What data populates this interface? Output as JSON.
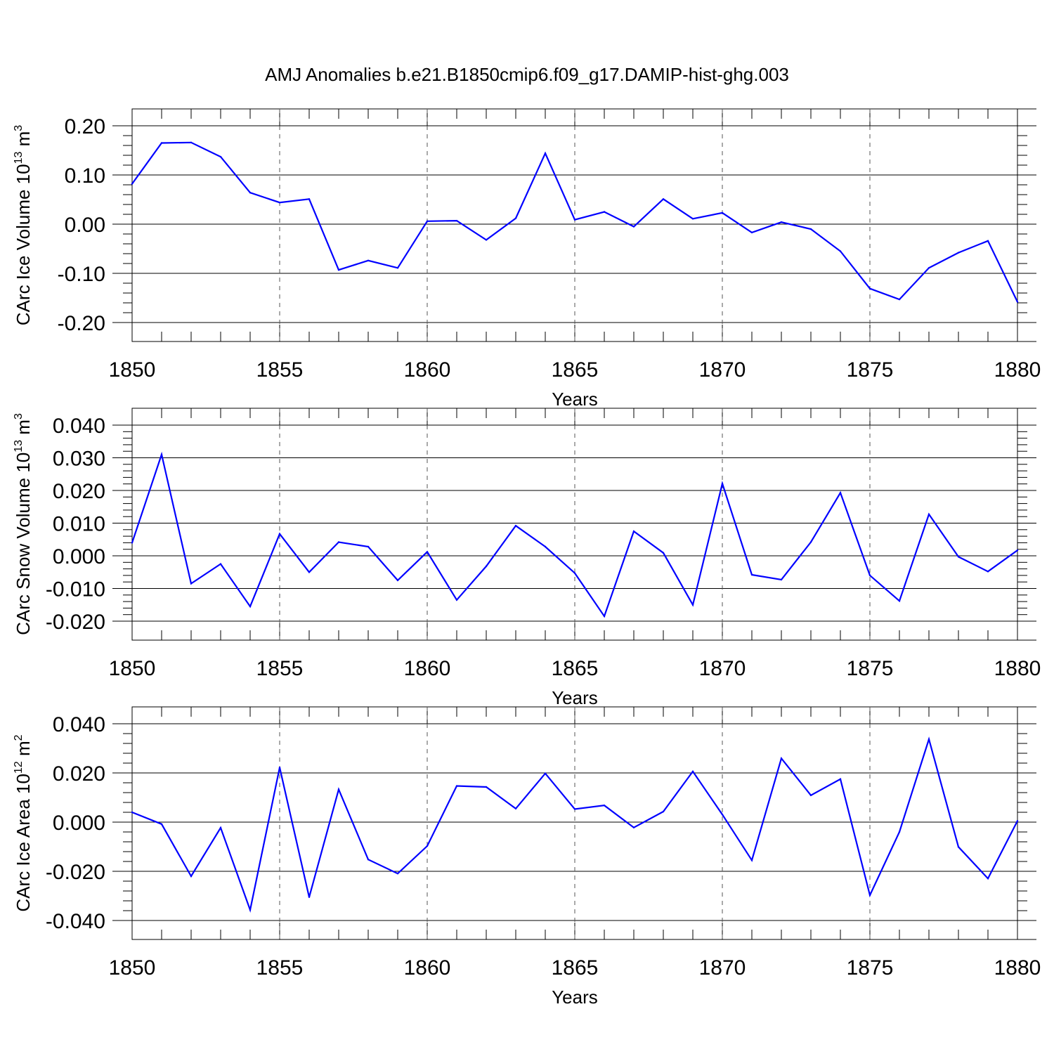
{
  "title": "AMJ Anomalies b.e21.B1850cmip6.f09_g17.DAMIP-hist-ghg.003",
  "line_color": "#0000ff",
  "chart_data": [
    {
      "type": "line",
      "ylabel": {
        "main": "CArc Ice Volume 10",
        "exp": "13",
        "unit": " m",
        "unit_exp": "3"
      },
      "xlabel": "Years",
      "xlim": [
        1850,
        1880
      ],
      "ylim": [
        -0.2,
        0.2
      ],
      "xticks": [
        "1850",
        "1855",
        "1860",
        "1865",
        "1870",
        "1875",
        "1880"
      ],
      "yticks": [
        "-0.20",
        "-0.10",
        "0.00",
        "0.10",
        "0.20"
      ],
      "x": [
        1850,
        1851,
        1852,
        1853,
        1854,
        1855,
        1856,
        1857,
        1858,
        1859,
        1860,
        1861,
        1862,
        1863,
        1864,
        1865,
        1866,
        1867,
        1868,
        1869,
        1870,
        1871,
        1872,
        1873,
        1874,
        1875,
        1876,
        1877,
        1878,
        1879,
        1880
      ],
      "values": [
        0.082,
        0.165,
        0.166,
        0.137,
        0.064,
        0.044,
        0.051,
        -0.093,
        -0.074,
        -0.089,
        0.006,
        0.007,
        -0.032,
        0.012,
        0.144,
        0.009,
        0.025,
        -0.005,
        0.051,
        0.011,
        0.023,
        -0.017,
        0.004,
        -0.01,
        -0.055,
        -0.131,
        -0.153,
        -0.089,
        -0.058,
        -0.034,
        -0.158
      ]
    },
    {
      "type": "line",
      "ylabel": {
        "main": "CArc Snow Volume 10",
        "exp": "13",
        "unit": " m",
        "unit_exp": "3"
      },
      "xlabel": "Years",
      "xlim": [
        1850,
        1880
      ],
      "ylim": [
        -0.02,
        0.04
      ],
      "xticks": [
        "1850",
        "1855",
        "1860",
        "1865",
        "1870",
        "1875",
        "1880"
      ],
      "yticks": [
        "-0.020",
        "-0.010",
        "0.000",
        "0.010",
        "0.020",
        "0.030",
        "0.040"
      ],
      "x": [
        1850,
        1851,
        1852,
        1853,
        1854,
        1855,
        1856,
        1857,
        1858,
        1859,
        1860,
        1861,
        1862,
        1863,
        1864,
        1865,
        1866,
        1867,
        1868,
        1869,
        1870,
        1871,
        1872,
        1873,
        1874,
        1875,
        1876,
        1877,
        1878,
        1879,
        1880
      ],
      "values": [
        0.004,
        0.031,
        -0.0085,
        -0.0025,
        -0.0155,
        0.0067,
        -0.005,
        0.0042,
        0.0028,
        -0.0075,
        0.0012,
        -0.0135,
        -0.0032,
        0.0092,
        0.0028,
        -0.0053,
        -0.0185,
        0.0075,
        0.0009,
        -0.015,
        0.0221,
        -0.0058,
        -0.0073,
        0.0042,
        0.0193,
        -0.006,
        -0.0138,
        0.0127,
        -0.0003,
        -0.0048,
        0.0017
      ]
    },
    {
      "type": "line",
      "ylabel": {
        "main": "CArc Ice Area 10",
        "exp": "12",
        "unit": " m",
        "unit_exp": "2"
      },
      "xlabel": "Years",
      "xlim": [
        1850,
        1880
      ],
      "ylim": [
        -0.04,
        0.04
      ],
      "xticks": [
        "1850",
        "1855",
        "1860",
        "1865",
        "1870",
        "1875",
        "1880"
      ],
      "yticks": [
        "-0.040",
        "-0.020",
        "0.000",
        "0.020",
        "0.040"
      ],
      "x": [
        1850,
        1851,
        1852,
        1853,
        1854,
        1855,
        1856,
        1857,
        1858,
        1859,
        1860,
        1861,
        1862,
        1863,
        1864,
        1865,
        1866,
        1867,
        1868,
        1869,
        1870,
        1871,
        1872,
        1873,
        1874,
        1875,
        1876,
        1877,
        1878,
        1879,
        1880
      ],
      "values": [
        0.004,
        -0.0008,
        -0.022,
        -0.0023,
        -0.0357,
        0.0222,
        -0.0305,
        0.0133,
        -0.0152,
        -0.0209,
        -0.0097,
        0.0147,
        0.0143,
        0.0055,
        0.0198,
        0.0053,
        0.0068,
        -0.0022,
        0.0043,
        0.0206,
        0.0031,
        -0.0155,
        0.0259,
        0.0109,
        0.0175,
        -0.0297,
        -0.004,
        0.0337,
        -0.0101,
        -0.0229,
        0.0005
      ]
    }
  ]
}
